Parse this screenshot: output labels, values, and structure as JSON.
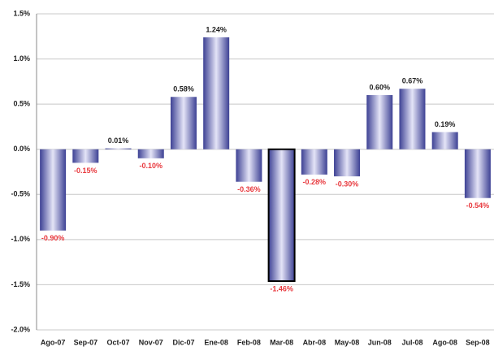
{
  "chart_data": {
    "type": "bar",
    "categories": [
      "Ago-07",
      "Sep-07",
      "Oct-07",
      "Nov-07",
      "Dic-07",
      "Ene-08",
      "Feb-08",
      "Mar-08",
      "Abr-08",
      "May-08",
      "Jun-08",
      "Jul-08",
      "Ago-08",
      "Sep-08"
    ],
    "values": [
      -0.9,
      -0.15,
      0.01,
      -0.1,
      0.58,
      1.24,
      -0.36,
      -1.46,
      -0.28,
      -0.3,
      0.6,
      0.67,
      0.19,
      -0.54
    ],
    "value_labels": [
      "-0.90%",
      "-0.15%",
      "0.01%",
      "-0.10%",
      "0.58%",
      "1.24%",
      "-0.36%",
      "-1.46%",
      "-0.28%",
      "-0.30%",
      "0.60%",
      "0.67%",
      "0.19%",
      "-0.54%"
    ],
    "color": "#3d4194",
    "highlight_color": "#e4e4f7",
    "label_color_positive": "#222222",
    "label_color_negative": "#e8383d",
    "highlight": 7,
    "ylim": [
      -2.0,
      1.5
    ],
    "yticks": [
      {
        "value": -2.0,
        "label": "-2.0%"
      },
      {
        "value": -1.5,
        "label": "-1.5%"
      },
      {
        "value": -1.0,
        "label": "-1.0%"
      },
      {
        "value": -0.5,
        "label": "-0.5%"
      },
      {
        "value": 0.0,
        "label": "0.0%"
      },
      {
        "value": 0.5,
        "label": "0.5%"
      },
      {
        "value": 1.0,
        "label": "1.0%"
      },
      {
        "value": 1.5,
        "label": "1.5%"
      }
    ],
    "grid": true
  }
}
